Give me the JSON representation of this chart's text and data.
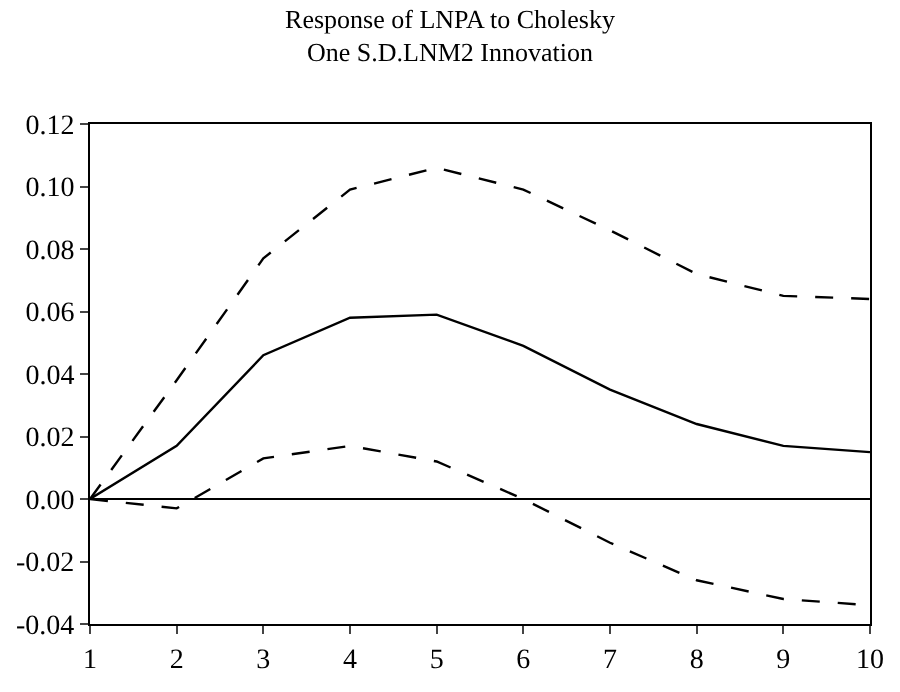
{
  "chart_data": {
    "type": "line",
    "title": "Response of LNPA to Cholesky\nOne S.D.LNM2 Innovation",
    "x": [
      1,
      2,
      3,
      4,
      5,
      6,
      7,
      8,
      9,
      10
    ],
    "series": [
      {
        "color": "#000000",
        "line_style": "dashed",
        "values": [
          0.0,
          0.038,
          0.077,
          0.099,
          0.106,
          0.099,
          0.086,
          0.072,
          0.065,
          0.064
        ]
      },
      {
        "color": "#000000",
        "line_style": "solid",
        "values": [
          0.0,
          0.017,
          0.046,
          0.058,
          0.059,
          0.049,
          0.035,
          0.024,
          0.017,
          0.015
        ]
      },
      {
        "color": "#000000",
        "line_style": "dashed",
        "values": [
          0.0,
          -0.003,
          0.013,
          0.017,
          0.012,
          0.0,
          -0.014,
          -0.026,
          -0.032,
          -0.034
        ]
      }
    ],
    "xlim": [
      1,
      10
    ],
    "xticks": [
      1,
      2,
      3,
      4,
      5,
      6,
      7,
      8,
      9,
      10
    ],
    "ylim": [
      -0.04,
      0.12
    ],
    "yticks": [
      {
        "value": -0.04,
        "label": "-0.04"
      },
      {
        "value": -0.02,
        "label": "-0.02"
      },
      {
        "value": 0,
        "label": "0.00"
      },
      {
        "value": 0.02,
        "label": "0.02"
      },
      {
        "value": 0.04,
        "label": "0.04"
      },
      {
        "value": 0.06,
        "label": "0.06"
      },
      {
        "value": 0.08,
        "label": "0.08"
      },
      {
        "value": 0.1,
        "label": "0.10"
      },
      {
        "value": 0.12,
        "label": "0.12"
      }
    ],
    "ref_lines": [
      {
        "axis": "y",
        "value": 0,
        "color": "#000000",
        "line_style": "solid"
      }
    ]
  }
}
